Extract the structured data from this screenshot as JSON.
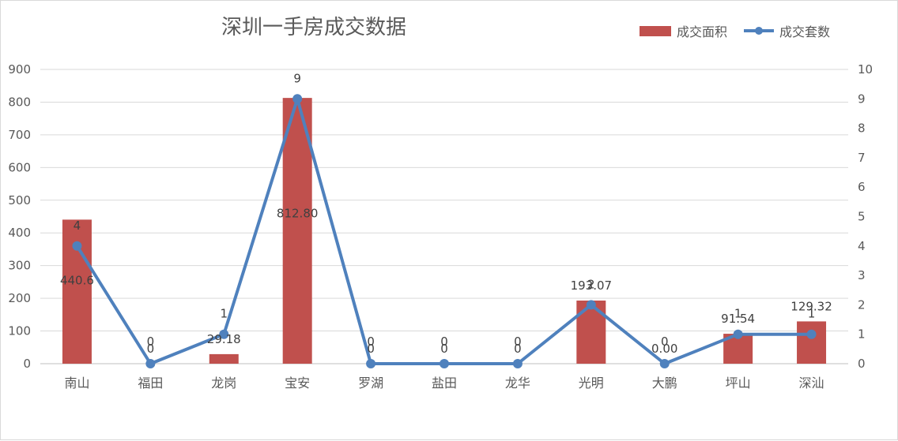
{
  "chart_data": {
    "type": "bar+line",
    "title": "深圳一手房成交数据",
    "categories": [
      "南山",
      "福田",
      "龙岗",
      "宝安",
      "罗湖",
      "盐田",
      "龙华",
      "光明",
      "大鹏",
      "坪山",
      "深汕"
    ],
    "series": [
      {
        "name": "成交面积",
        "type": "bar",
        "axis": "left",
        "color": "#c0504d",
        "values": [
          440.6,
          0,
          29.18,
          812.8,
          0,
          0,
          0,
          193.07,
          0.0,
          91.54,
          129.32
        ],
        "labels": [
          "440.6",
          "0",
          "29.18",
          "812.80",
          "0",
          "0",
          "0",
          "193.07",
          "0.00",
          "91.54",
          "129.32"
        ]
      },
      {
        "name": "成交套数",
        "type": "line",
        "axis": "right",
        "color": "#4f81bd",
        "values": [
          4,
          0,
          1,
          9,
          0,
          0,
          0,
          2,
          0,
          1,
          1
        ],
        "labels": [
          "4",
          "0",
          "1",
          "9",
          "0",
          "0",
          "0",
          "2",
          "0",
          "1",
          "1"
        ]
      }
    ],
    "y_left": {
      "min": 0,
      "max": 900,
      "step": 100
    },
    "y_right": {
      "min": 0,
      "max": 10,
      "step": 1
    },
    "grid": true,
    "legend_position": "top-right"
  }
}
